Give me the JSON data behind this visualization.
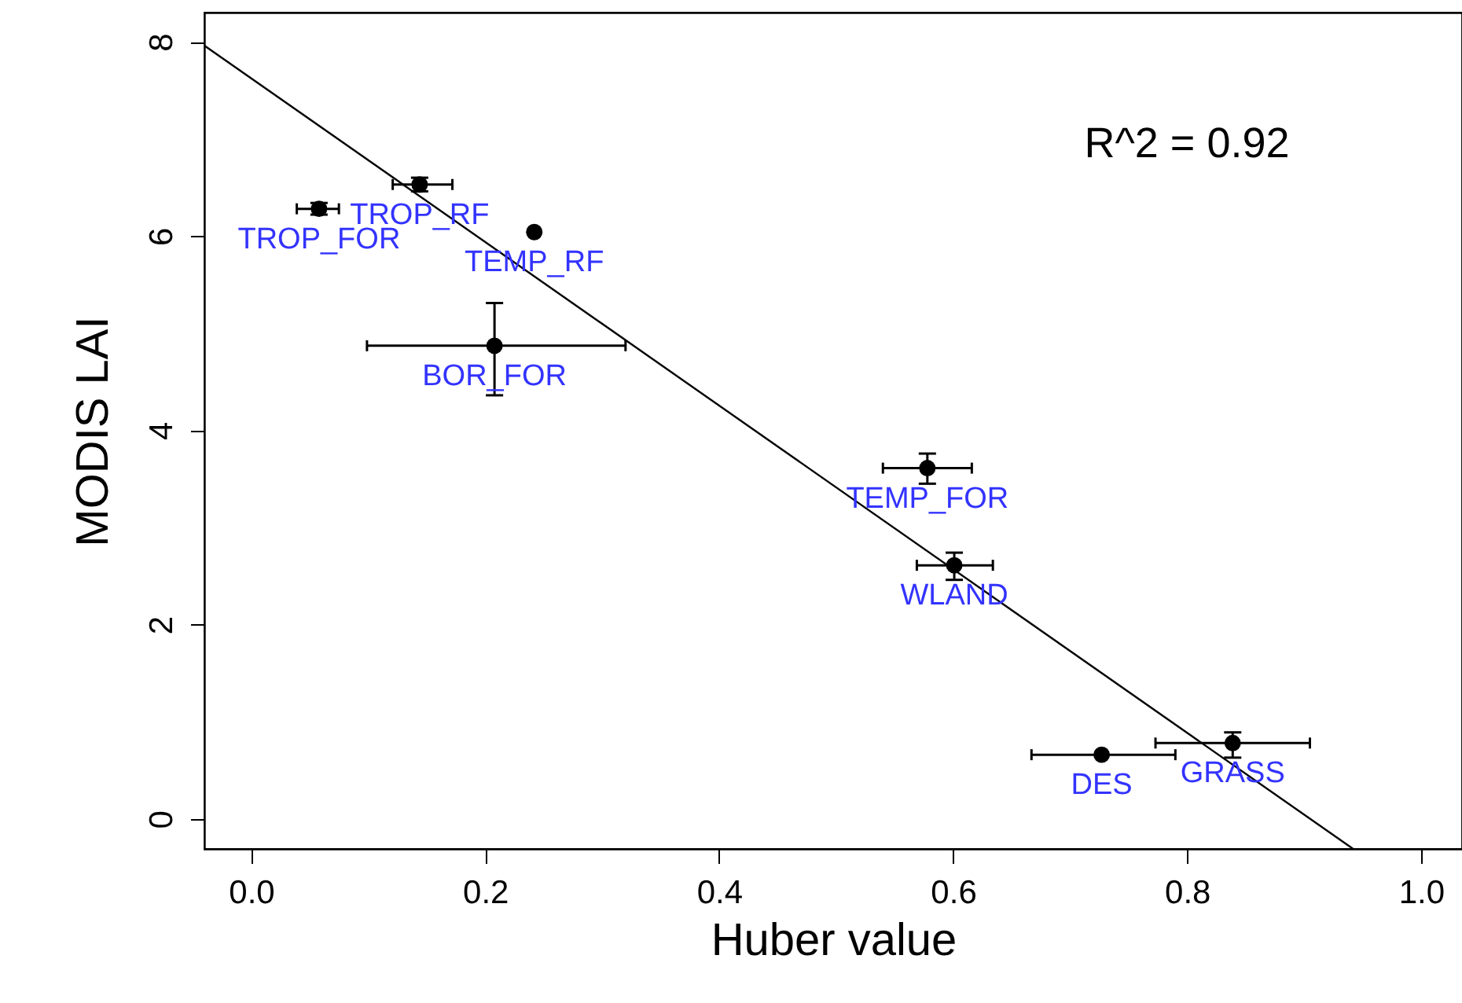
{
  "chart_data": {
    "type": "scatter",
    "xlabel": "Huber value",
    "ylabel": "MODIS LAI",
    "xlim": [
      -0.04,
      1.035
    ],
    "ylim": [
      -0.31,
      8.3
    ],
    "xticks": [
      {
        "value": 0,
        "label": "0.0"
      },
      0.2,
      0.4,
      0.6,
      0.8,
      {
        "value": 1,
        "label": "1.0"
      }
    ],
    "yticks": [
      0,
      2,
      4,
      6,
      8
    ],
    "grid": false,
    "series": [
      {
        "type": "scatter",
        "marker": "circle",
        "color": "#000000",
        "x": [
          0.058,
          0.144,
          0.242,
          0.208,
          0.578,
          0.601,
          0.727,
          0.839
        ],
        "values": [
          6.28,
          6.53,
          6.04,
          4.87,
          3.61,
          2.61,
          0.66,
          0.78
        ],
        "errors": [
          [
            6.22,
            6.34
          ],
          [
            6.46,
            6.6
          ],
          null,
          [
            4.36,
            5.31
          ],
          [
            3.45,
            3.76
          ],
          [
            2.46,
            2.74
          ],
          null,
          [
            0.63,
            0.89
          ]
        ],
        "xerrors": [
          [
            0.039,
            0.075
          ],
          [
            0.121,
            0.172
          ],
          null,
          [
            0.099,
            0.32
          ],
          [
            0.54,
            0.616
          ],
          [
            0.569,
            0.634
          ],
          [
            0.667,
            0.79
          ],
          [
            0.773,
            0.905
          ]
        ]
      },
      {
        "type": "line",
        "color": "#000000",
        "x": [
          -0.04,
          0.942
        ],
        "values": [
          7.96,
          -0.31
        ]
      }
    ],
    "annotations": [
      "R^2 =  0.92",
      {
        "text": "TROP_FOR",
        "x": 0.058,
        "y": 6.28
      },
      {
        "text": "TROP_RF",
        "x": 0.144,
        "y": 6.53
      },
      {
        "text": "TEMP_RF",
        "x": 0.242,
        "y": 6.04
      },
      {
        "text": "BOR_FOR",
        "x": 0.208,
        "y": 4.87
      },
      {
        "text": "TEMP_FOR",
        "x": 0.578,
        "y": 3.61
      },
      {
        "text": "WLAND",
        "x": 0.601,
        "y": 2.61
      },
      {
        "text": "DES",
        "x": 0.727,
        "y": 0.66
      },
      {
        "text": "GRASS",
        "x": 0.839,
        "y": 0.78
      }
    ]
  }
}
